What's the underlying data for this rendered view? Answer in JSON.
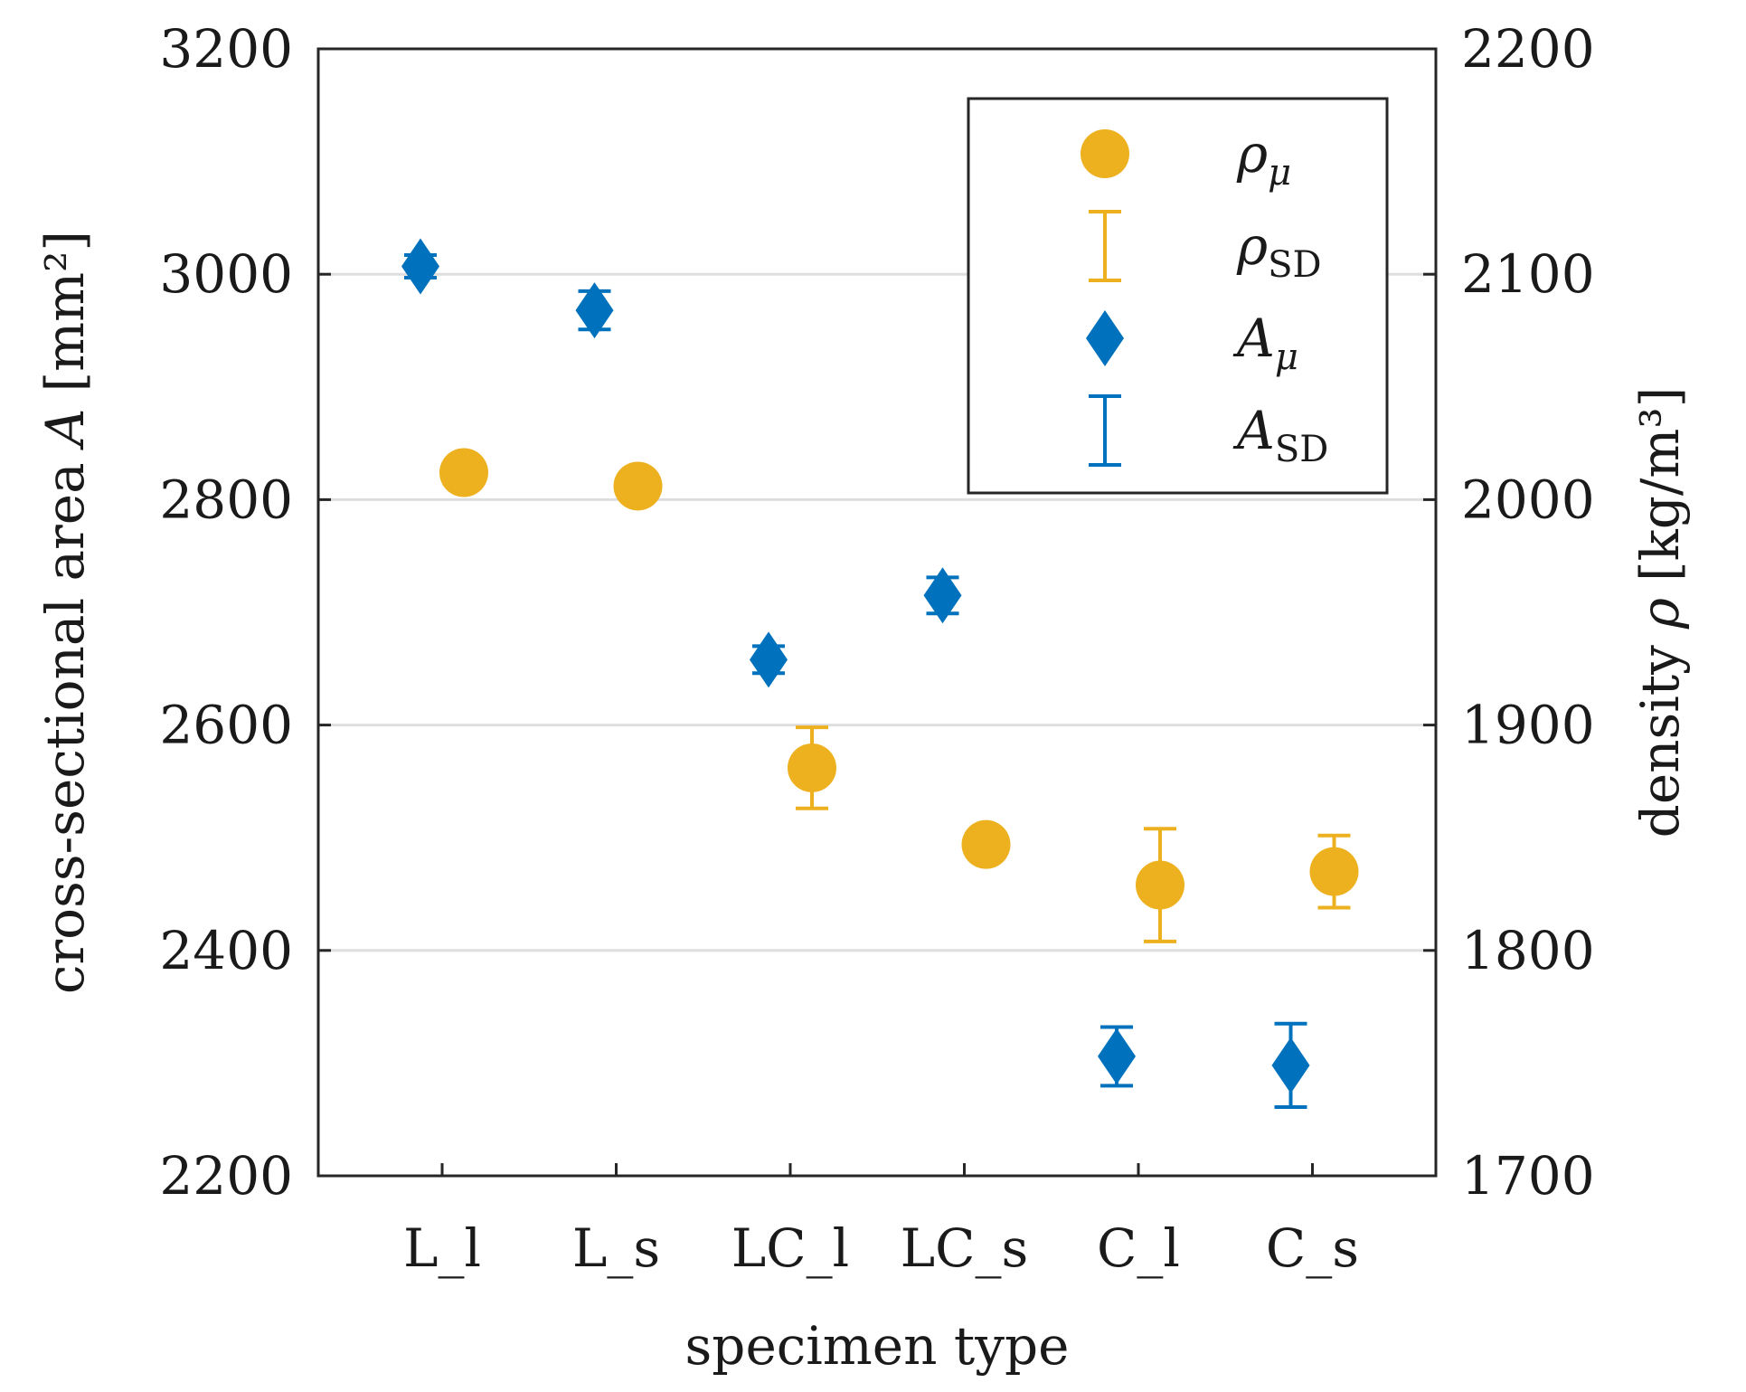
{
  "chart_data": {
    "type": "scatter",
    "title": "",
    "xlabel": "specimen type",
    "ylabel": "cross-sectional area",
    "ylabel_symbol": "A",
    "ylabel_unit": "[mm²]",
    "y2label": "density",
    "y2label_symbol": "ρ",
    "y2label_unit": "[kg/m³]",
    "categories": [
      "L_l",
      "L_s",
      "LC_l",
      "LC_s",
      "C_l",
      "C_s"
    ],
    "ylim": [
      2200,
      3200
    ],
    "y2lim": [
      1700,
      2200
    ],
    "yticks": [
      "2200",
      "2400",
      "2600",
      "2800",
      "3000",
      "3200"
    ],
    "y2ticks": [
      "1700",
      "1800",
      "1900",
      "2000",
      "2100",
      "2200"
    ],
    "grid": "horizontal",
    "legend_position": "top-right",
    "series": [
      {
        "name": "A_μ",
        "axis": "left",
        "marker": "diamond",
        "color": "#0072BD",
        "values": [
          3007,
          2968,
          2658,
          2715,
          2306,
          2298
        ],
        "sd": [
          10,
          17,
          12,
          16,
          26,
          37
        ]
      },
      {
        "name": "ρ_μ",
        "axis": "right",
        "marker": "circle",
        "color": "#EDB120",
        "values": [
          2012,
          2006,
          1881,
          1847,
          1829,
          1835
        ],
        "sd": [
          0,
          0,
          18,
          0,
          25,
          16
        ]
      }
    ],
    "legend": [
      {
        "symbol": "ρ",
        "sub": "μ",
        "kind": "circle",
        "color": "#EDB120"
      },
      {
        "symbol": "ρ",
        "sub": "SD",
        "kind": "errorbar",
        "color": "#EDB120"
      },
      {
        "symbol": "A",
        "sub": "μ",
        "kind": "diamond",
        "color": "#0072BD"
      },
      {
        "symbol": "A",
        "sub": "SD",
        "kind": "errorbar",
        "color": "#0072BD"
      }
    ]
  }
}
